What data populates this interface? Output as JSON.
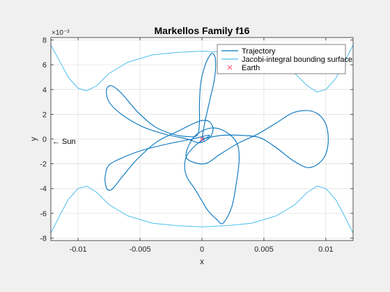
{
  "chart_data": {
    "type": "line",
    "title": "Markellos Family f16",
    "xlabel": "x",
    "ylabel": "y",
    "xlim": [
      -0.0122,
      0.0122
    ],
    "ylim": [
      -0.0082,
      0.0082
    ],
    "x_ticks": [
      -0.01,
      -0.005,
      0,
      0.005,
      0.01
    ],
    "x_tick_labels": [
      "-0.01",
      "-0.005",
      "0",
      "0.005",
      "0.01"
    ],
    "y_ticks": [
      -8,
      -6,
      -4,
      -2,
      0,
      2,
      4,
      6,
      8
    ],
    "y_tick_labels": [
      "-8",
      "-6",
      "-4",
      "-2",
      "0",
      "2",
      "4",
      "6",
      "8"
    ],
    "y_exponent_label": "×10⁻³",
    "grid": true,
    "legend_position": "top-right",
    "annotation": "← Sun",
    "series": [
      {
        "name": "Trajectory",
        "color": "#0072bd",
        "points": [
          [
            0.0,
            0.0
          ],
          [
            0.0016,
            0.0003
          ],
          [
            0.0032,
            0.0003
          ],
          [
            0.0047,
            0.0001
          ],
          [
            0.006,
            -0.0007
          ],
          [
            0.0073,
            -0.0017
          ],
          [
            0.0085,
            -0.0023
          ],
          [
            0.0094,
            -0.002
          ],
          [
            0.01,
            -0.0012
          ],
          [
            0.0102,
            0.0
          ],
          [
            0.01,
            0.0012
          ],
          [
            0.0094,
            0.002
          ],
          [
            0.0085,
            0.0023
          ],
          [
            0.0073,
            0.0021
          ],
          [
            0.006,
            0.0013
          ],
          [
            0.0045,
            0.0004
          ],
          [
            0.003,
            -0.0003
          ],
          [
            0.0015,
            -0.0012
          ],
          [
            0.0002,
            -0.002
          ],
          [
            -0.0012,
            -0.0016
          ],
          [
            -0.0011,
            -0.0006
          ],
          [
            -0.0004,
            0.0004
          ],
          [
            0.0008,
            0.0009
          ],
          [
            0.0019,
            0.0006
          ],
          [
            0.0028,
            -0.0003
          ],
          [
            0.003,
            -0.0016
          ],
          [
            0.0028,
            -0.0034
          ],
          [
            0.0024,
            -0.0055
          ],
          [
            0.0017,
            -0.0068
          ],
          [
            0.0012,
            -0.0065
          ],
          [
            0.0005,
            -0.0058
          ],
          [
            0.0,
            -0.005
          ],
          [
            -0.0006,
            -0.004
          ],
          [
            -0.0012,
            -0.0031
          ],
          [
            -0.0014,
            -0.0022
          ],
          [
            -0.0012,
            -0.0013
          ],
          [
            -0.0004,
            -0.0004
          ],
          [
            0.0006,
            0.0003
          ],
          [
            -0.0008,
            0.0
          ],
          [
            -0.0028,
            -0.0004
          ],
          [
            -0.0048,
            -0.0009
          ],
          [
            -0.0064,
            -0.0015
          ],
          [
            -0.0075,
            -0.0021
          ],
          [
            -0.0078,
            -0.0029
          ],
          [
            -0.0078,
            -0.0036
          ],
          [
            -0.0076,
            -0.0041
          ],
          [
            -0.0072,
            -0.004
          ],
          [
            -0.0064,
            -0.003
          ],
          [
            -0.0052,
            -0.0016
          ],
          [
            -0.0036,
            -0.0002
          ],
          [
            -0.002,
            0.0006
          ],
          [
            -0.0008,
            0.0012
          ],
          [
            0.0,
            0.0015
          ],
          [
            0.0006,
            0.0014
          ],
          [
            0.0009,
            0.0008
          ],
          [
            0.0006,
            0.0001
          ],
          [
            -0.0002,
            -0.0003
          ],
          [
            -0.0012,
            0.0
          ],
          [
            -0.003,
            0.0004
          ],
          [
            -0.0048,
            0.001
          ],
          [
            -0.0065,
            0.002
          ],
          [
            -0.0075,
            0.003
          ],
          [
            -0.0077,
            0.004
          ],
          [
            -0.0073,
            0.0043
          ],
          [
            -0.0065,
            0.0037
          ],
          [
            -0.0052,
            0.0022
          ],
          [
            -0.0038,
            0.001
          ],
          [
            -0.0024,
            0.0004
          ],
          [
            -0.0012,
            0.0002
          ],
          [
            -0.0004,
            0.0003
          ],
          [
            -0.0002,
            0.0013
          ],
          [
            -0.0002,
            0.0028
          ],
          [
            -0.0001,
            0.0045
          ],
          [
            0.0002,
            0.0058
          ],
          [
            0.0006,
            0.0067
          ],
          [
            0.0009,
            0.0069
          ],
          [
            0.0011,
            0.0063
          ],
          [
            0.001,
            0.0048
          ],
          [
            0.0006,
            0.003
          ],
          [
            0.0002,
            0.0012
          ],
          [
            0.0,
            0.0
          ]
        ]
      },
      {
        "name": "Jacobi-integral bounding surface",
        "color": "#4dbeee",
        "points_upper": [
          [
            -0.0122,
            0.0076
          ],
          [
            -0.0115,
            0.0063
          ],
          [
            -0.0108,
            0.005
          ],
          [
            -0.01,
            0.0041
          ],
          [
            -0.0093,
            0.0039
          ],
          [
            -0.0085,
            0.0043
          ],
          [
            -0.0075,
            0.0053
          ],
          [
            -0.006,
            0.0062
          ],
          [
            -0.004,
            0.0068
          ],
          [
            -0.002,
            0.007
          ],
          [
            0.0,
            0.0071
          ],
          [
            0.002,
            0.007
          ],
          [
            0.004,
            0.0068
          ],
          [
            0.006,
            0.0062
          ],
          [
            0.0075,
            0.0053
          ],
          [
            0.0085,
            0.0043
          ],
          [
            0.0093,
            0.0038
          ],
          [
            0.01,
            0.004
          ],
          [
            0.0108,
            0.0049
          ],
          [
            0.0115,
            0.0062
          ],
          [
            0.0122,
            0.0076
          ]
        ],
        "points_lower": [
          [
            -0.0122,
            -0.0076
          ],
          [
            -0.0115,
            -0.0062
          ],
          [
            -0.0108,
            -0.0049
          ],
          [
            -0.01,
            -0.004
          ],
          [
            -0.0093,
            -0.0038
          ],
          [
            -0.0085,
            -0.0043
          ],
          [
            -0.0075,
            -0.0053
          ],
          [
            -0.006,
            -0.0062
          ],
          [
            -0.004,
            -0.0068
          ],
          [
            -0.002,
            -0.007
          ],
          [
            0.0,
            -0.0071
          ],
          [
            0.002,
            -0.007
          ],
          [
            0.004,
            -0.0068
          ],
          [
            0.006,
            -0.0062
          ],
          [
            0.0075,
            -0.0053
          ],
          [
            0.0085,
            -0.0043
          ],
          [
            0.0093,
            -0.0038
          ],
          [
            0.01,
            -0.004
          ],
          [
            0.0108,
            -0.0049
          ],
          [
            0.0115,
            -0.0062
          ],
          [
            0.0122,
            -0.0076
          ]
        ]
      },
      {
        "name": "Earth",
        "color": "#ff4d6d",
        "marker": "x",
        "point": [
          0,
          0
        ]
      }
    ]
  }
}
